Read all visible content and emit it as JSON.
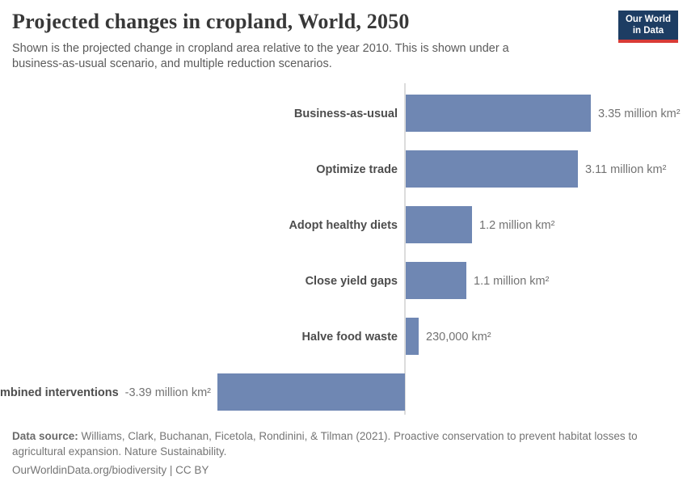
{
  "header": {
    "title": "Projected changes in cropland, World, 2050",
    "subtitle": "Shown is the projected change in cropland area relative to the year 2010. This is shown under a business-as-usual scenario, and multiple reduction scenarios.",
    "logo": {
      "line1": "Our World",
      "line2": "in Data",
      "bg_color": "#1d3d63",
      "accent_color": "#d93b36"
    }
  },
  "chart_data": {
    "type": "bar",
    "orientation": "horizontal",
    "title": "Projected changes in cropland, World, 2050",
    "unit": "million km²",
    "categories": [
      "Business-as-usual",
      "Optimize trade",
      "Adopt healthy diets",
      "Close yield gaps",
      "Halve food waste",
      "Combined interventions"
    ],
    "values": [
      3.35,
      3.11,
      1.2,
      1.1,
      0.23,
      -3.39
    ],
    "value_labels": [
      "3.35 million km²",
      "3.11 million km²",
      "1.2 million km²",
      "1.1 million km²",
      "230,000 km²",
      "-3.39 million km²"
    ],
    "xlim": [
      -3.39,
      3.35
    ],
    "grid": false,
    "legend": "none",
    "bar_color": "#6f87b3",
    "axis_color": "#dcdcdc"
  },
  "footer": {
    "datasource_label": "Data source:",
    "datasource_text": "Williams, Clark, Buchanan, Ficetola, Rondinini, & Tilman (2021). Proactive conservation to prevent habitat losses to agricultural expansion. Nature Sustainability.",
    "citation_link": "OurWorldinData.org/biodiversity",
    "license_suffix": " | CC BY"
  }
}
